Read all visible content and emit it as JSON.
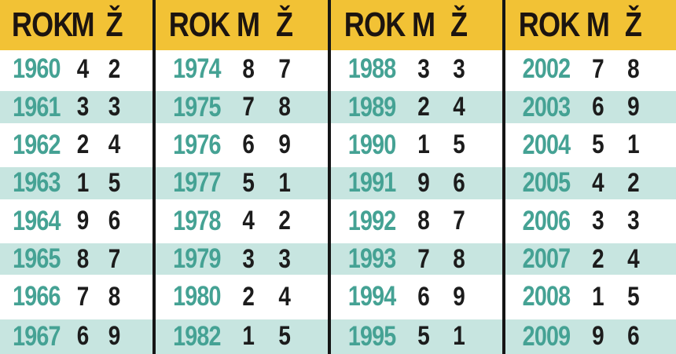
{
  "colors": {
    "header_bg": "#f2c235",
    "header_text": "#1c1410",
    "year_text": "#45a294",
    "value_text": "#1c1c1c",
    "stripe": "#c7e5e0",
    "divider": "#151515",
    "background": "#ffffff"
  },
  "chart_data": {
    "type": "table",
    "title": "",
    "header_labels": {
      "rok": "ROK",
      "m": "M",
      "z": "Ž"
    },
    "layout": "4 side-by-side year blocks, yellow header band, alternating white/teal row stripes, black vertical dividers between blocks",
    "blocks": [
      {
        "rows": [
          {
            "year": "1960",
            "m": "4",
            "z": "2"
          },
          {
            "year": "1961",
            "m": "3",
            "z": "3"
          },
          {
            "year": "1962",
            "m": "2",
            "z": "4"
          },
          {
            "year": "1963",
            "m": "1",
            "z": "5"
          },
          {
            "year": "1964",
            "m": "9",
            "z": "6"
          },
          {
            "year": "1965",
            "m": "8",
            "z": "7"
          },
          {
            "year": "1966",
            "m": "7",
            "z": "8"
          },
          {
            "year": "1967",
            "m": "6",
            "z": "9"
          }
        ]
      },
      {
        "rows": [
          {
            "year": "1974",
            "m": "8",
            "z": "7"
          },
          {
            "year": "1975",
            "m": "7",
            "z": "8"
          },
          {
            "year": "1976",
            "m": "6",
            "z": "9"
          },
          {
            "year": "1977",
            "m": "5",
            "z": "1"
          },
          {
            "year": "1978",
            "m": "4",
            "z": "2"
          },
          {
            "year": "1979",
            "m": "3",
            "z": "3"
          },
          {
            "year": "1980",
            "m": "2",
            "z": "4"
          },
          {
            "year": "1982",
            "m": "1",
            "z": "5"
          }
        ]
      },
      {
        "rows": [
          {
            "year": "1988",
            "m": "3",
            "z": "3"
          },
          {
            "year": "1989",
            "m": "2",
            "z": "4"
          },
          {
            "year": "1990",
            "m": "1",
            "z": "5"
          },
          {
            "year": "1991",
            "m": "9",
            "z": "6"
          },
          {
            "year": "1992",
            "m": "8",
            "z": "7"
          },
          {
            "year": "1993",
            "m": "7",
            "z": "8"
          },
          {
            "year": "1994",
            "m": "6",
            "z": "9"
          },
          {
            "year": "1995",
            "m": "5",
            "z": "1"
          }
        ]
      },
      {
        "rows": [
          {
            "year": "2002",
            "m": "7",
            "z": "8"
          },
          {
            "year": "2003",
            "m": "6",
            "z": "9"
          },
          {
            "year": "2004",
            "m": "5",
            "z": "1"
          },
          {
            "year": "2005",
            "m": "4",
            "z": "2"
          },
          {
            "year": "2006",
            "m": "3",
            "z": "3"
          },
          {
            "year": "2007",
            "m": "2",
            "z": "4"
          },
          {
            "year": "2008",
            "m": "1",
            "z": "5"
          },
          {
            "year": "2009",
            "m": "9",
            "z": "6"
          }
        ]
      }
    ]
  }
}
